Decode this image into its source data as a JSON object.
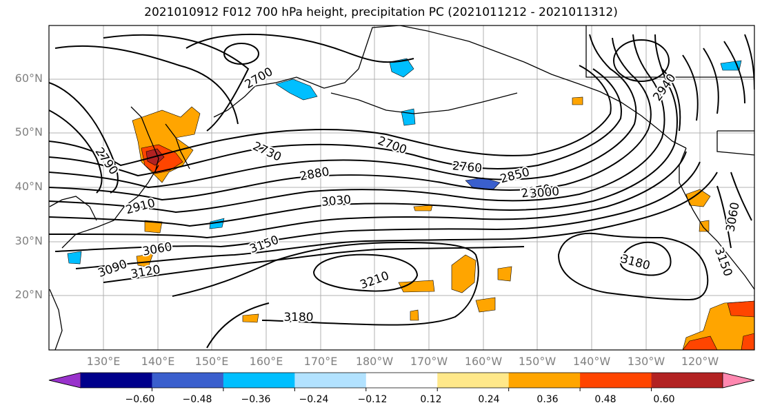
{
  "title": "2021010912 F012 700 hPa height, precipitation PC (2021011212 - 2021011312)",
  "lat_labels": [
    "60°N",
    "50°N",
    "40°N",
    "30°N",
    "20°N"
  ],
  "lon_labels": [
    "130°E",
    "140°E",
    "150°E",
    "160°E",
    "170°E",
    "180°W",
    "170°W",
    "160°W",
    "150°W",
    "140°W",
    "130°W",
    "120°W"
  ],
  "contour_labels": [
    "2700",
    "2790",
    "2730",
    "2700",
    "2760",
    "2850",
    "2970",
    "3000",
    "2880",
    "3030",
    "2910",
    "3060",
    "3090",
    "3120",
    "3150",
    "3210",
    "3180",
    "3180",
    "3150",
    "3060",
    "2940"
  ],
  "colorbar": {
    "colors": [
      "#9932cc",
      "#00008b",
      "#3a5fcd",
      "#00bfff",
      "#b2e2ff",
      "#ffffff",
      "#ffe88a",
      "#ffa500",
      "#ff4500",
      "#b22222",
      "#ff88b0"
    ],
    "labels": [
      "−0.60",
      "−0.48",
      "−0.36",
      "−0.24",
      "−0.12",
      "0.12",
      "0.24",
      "0.36",
      "0.48",
      "0.60"
    ]
  }
}
